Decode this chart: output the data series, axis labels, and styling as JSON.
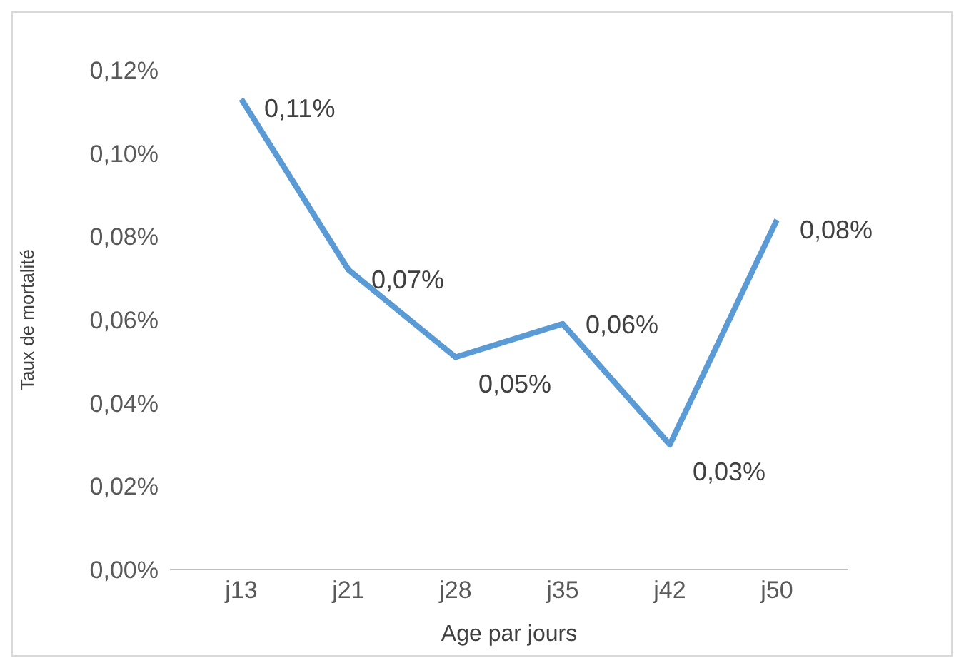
{
  "chart_data": {
    "type": "line",
    "xlabel": "Age par jours",
    "ylabel": "Taux de mortalité",
    "categories": [
      "j13",
      "j21",
      "j28",
      "j35",
      "j42",
      "j50"
    ],
    "series": [
      {
        "color": "#5b9bd5",
        "values": [
          0.113,
          0.072,
          0.051,
          0.059,
          0.03,
          0.084
        ],
        "value_labels": [
          "0,11%",
          "0,07%",
          "0,05%",
          "0,06%",
          "0,03%",
          "0,08%"
        ]
      }
    ],
    "ylim": [
      0,
      0.12
    ],
    "yticks": [
      {
        "value": 0,
        "label": "0,00%"
      },
      {
        "value": 0.02,
        "label": "0,02%"
      },
      {
        "value": 0.04,
        "label": "0,04%"
      },
      {
        "value": 0.06,
        "label": "0,06%"
      },
      {
        "value": 0.08,
        "label": "0,08%"
      },
      {
        "value": 0.1,
        "label": "0,10%"
      },
      {
        "value": 0.12,
        "label": "0,12%"
      }
    ],
    "grid": false,
    "legend": false,
    "marker": "none",
    "line_style": "solid"
  }
}
